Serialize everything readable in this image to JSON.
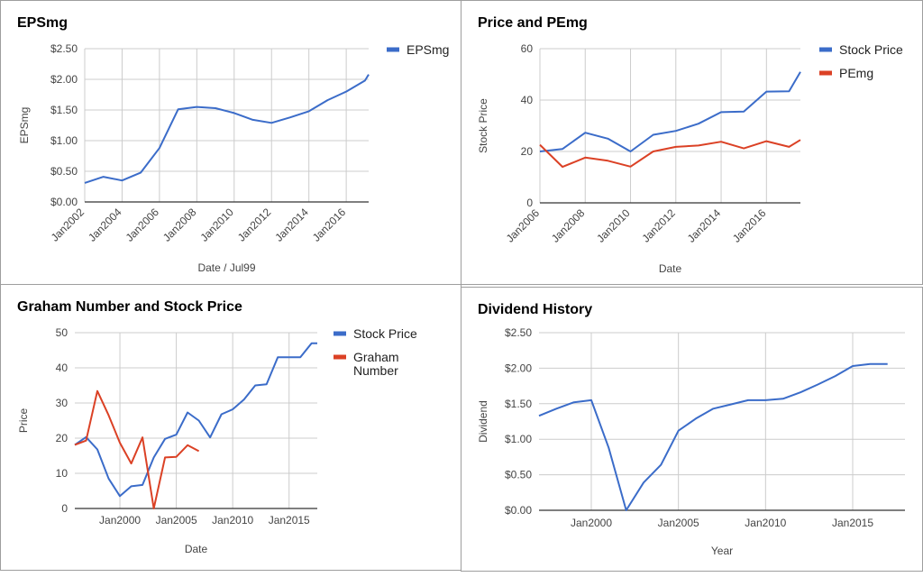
{
  "colors": {
    "blue": "#3b6cc9",
    "red": "#db4125",
    "grid": "#cccccc",
    "axis": "#333333",
    "tick": "#444444"
  },
  "chart_data": [
    {
      "id": "p1",
      "type": "line",
      "title": "EPSmg",
      "xlabel": "Date / Jul99",
      "ylabel": "EPSmg",
      "ylim": [
        0,
        2.5
      ],
      "yticks": [
        0,
        0.5,
        1,
        1.5,
        2,
        2.5
      ],
      "ytick_labels": [
        "$0.00",
        "$0.50",
        "$1.00",
        "$1.50",
        "$2.00",
        "$2.50"
      ],
      "xlim": [
        2002,
        2017.2
      ],
      "xticks": [
        2002,
        2004,
        2006,
        2008,
        2010,
        2012,
        2014,
        2016
      ],
      "xtick_labels": [
        "Jan2002",
        "Jan2004",
        "Jan2006",
        "Jan2008",
        "Jan2010",
        "Jan2012",
        "Jan2014",
        "Jan2016"
      ],
      "legend": "top-right",
      "series": [
        {
          "name": "EPSmg",
          "color": "#3b6cc9",
          "x": [
            2002,
            2003,
            2004,
            2005,
            2006,
            2007,
            2008,
            2009,
            2010,
            2011,
            2012,
            2013,
            2014,
            2015,
            2016,
            2017,
            2017.2
          ],
          "y": [
            0.31,
            0.41,
            0.35,
            0.48,
            0.88,
            1.51,
            1.55,
            1.53,
            1.45,
            1.34,
            1.29,
            1.38,
            1.48,
            1.66,
            1.8,
            1.98,
            2.08
          ]
        }
      ]
    },
    {
      "id": "p2",
      "type": "line",
      "title": "Price and PEmg",
      "xlabel": "Date",
      "ylabel": "Stock Price",
      "ylim": [
        0,
        60
      ],
      "yticks": [
        0,
        20,
        40,
        60
      ],
      "ytick_labels": [
        "0",
        "20",
        "40",
        "60"
      ],
      "xlim": [
        2006,
        2017.5
      ],
      "xticks": [
        2006,
        2008,
        2010,
        2012,
        2014,
        2016
      ],
      "xtick_labels": [
        "Jan2006",
        "Jan2008",
        "Jan2010",
        "Jan2012",
        "Jan2014",
        "Jan2016"
      ],
      "legend": "top-right",
      "series": [
        {
          "name": "Stock Price",
          "color": "#3b6cc9",
          "x": [
            2006,
            2007,
            2008,
            2009,
            2010,
            2011,
            2012,
            2013,
            2014,
            2015,
            2016,
            2017,
            2017.5
          ],
          "y": [
            20,
            21,
            27.3,
            25,
            20,
            26.5,
            28,
            30.8,
            35.3,
            35.5,
            43.3,
            43.4,
            51
          ]
        },
        {
          "name": "PEmg",
          "color": "#db4125",
          "x": [
            2006,
            2007,
            2008,
            2009,
            2010,
            2011,
            2012,
            2013,
            2014,
            2015,
            2016,
            2017,
            2017.5
          ],
          "y": [
            22.6,
            14,
            17.6,
            16.4,
            14.1,
            20,
            21.8,
            22.3,
            23.8,
            21.2,
            24,
            21.8,
            24.5
          ]
        }
      ]
    },
    {
      "id": "p3",
      "type": "line",
      "title": "Graham Number and Stock Price",
      "xlabel": "Date",
      "ylabel": "Price",
      "ylim": [
        0,
        50
      ],
      "yticks": [
        0,
        10,
        20,
        30,
        40,
        50
      ],
      "ytick_labels": [
        "0",
        "10",
        "20",
        "30",
        "40",
        "50"
      ],
      "xlim": [
        1996,
        2017.5
      ],
      "xticks": [
        2000,
        2005,
        2010,
        2015
      ],
      "xtick_labels": [
        "Jan2000",
        "Jan2005",
        "Jan2010",
        "Jan2015"
      ],
      "legend": "top-right",
      "series": [
        {
          "name": "Stock Price",
          "color": "#3b6cc9",
          "x": [
            1996,
            1997,
            1998,
            1999,
            2000,
            2001,
            2002,
            2003,
            2004,
            2005,
            2006,
            2007,
            2008,
            2009,
            2010,
            2011,
            2012,
            2013,
            2014,
            2015,
            2016,
            2017,
            2017.5
          ],
          "y": [
            18.1,
            20.3,
            16.8,
            8.5,
            3.5,
            6.3,
            6.7,
            14.5,
            19.8,
            21,
            27.3,
            25,
            20.2,
            26.8,
            28.2,
            31,
            35,
            35.3,
            43,
            43,
            43,
            47,
            47
          ]
        },
        {
          "name": "Graham\nNumber",
          "color": "#db4125",
          "x": [
            1996,
            1997,
            1998,
            1999,
            2000,
            2001,
            2002,
            2003,
            2004,
            2005,
            2006,
            2007
          ],
          "y": [
            18.1,
            19.3,
            33.4,
            26.5,
            18.7,
            12.8,
            20.2,
            0,
            14.5,
            14.7,
            18,
            16.3
          ]
        }
      ]
    },
    {
      "id": "p4",
      "type": "line",
      "title": "Dividend History",
      "xlabel": "Year",
      "ylabel": "Dividend",
      "ylim": [
        0,
        2.5
      ],
      "yticks": [
        0,
        0.5,
        1,
        1.5,
        2,
        2.5
      ],
      "ytick_labels": [
        "$0.00",
        "$0.50",
        "$1.00",
        "$1.50",
        "$2.00",
        "$2.50"
      ],
      "xlim": [
        1997,
        2018
      ],
      "xticks": [
        2000,
        2005,
        2010,
        2015
      ],
      "xtick_labels": [
        "Jan2000",
        "Jan2005",
        "Jan2010",
        "Jan2015"
      ],
      "legend": "none",
      "series": [
        {
          "name": "Dividend",
          "color": "#3b6cc9",
          "x": [
            1997,
            1998,
            1999,
            2000,
            2001,
            2002,
            2003,
            2004,
            2005,
            2006,
            2007,
            2008,
            2009,
            2010,
            2011,
            2012,
            2013,
            2014,
            2015,
            2016,
            2017
          ],
          "y": [
            1.33,
            1.43,
            1.52,
            1.55,
            0.88,
            0.0,
            0.39,
            0.64,
            1.12,
            1.29,
            1.43,
            1.49,
            1.55,
            1.55,
            1.57,
            1.66,
            1.77,
            1.89,
            2.03,
            2.06,
            2.06
          ]
        }
      ]
    }
  ]
}
